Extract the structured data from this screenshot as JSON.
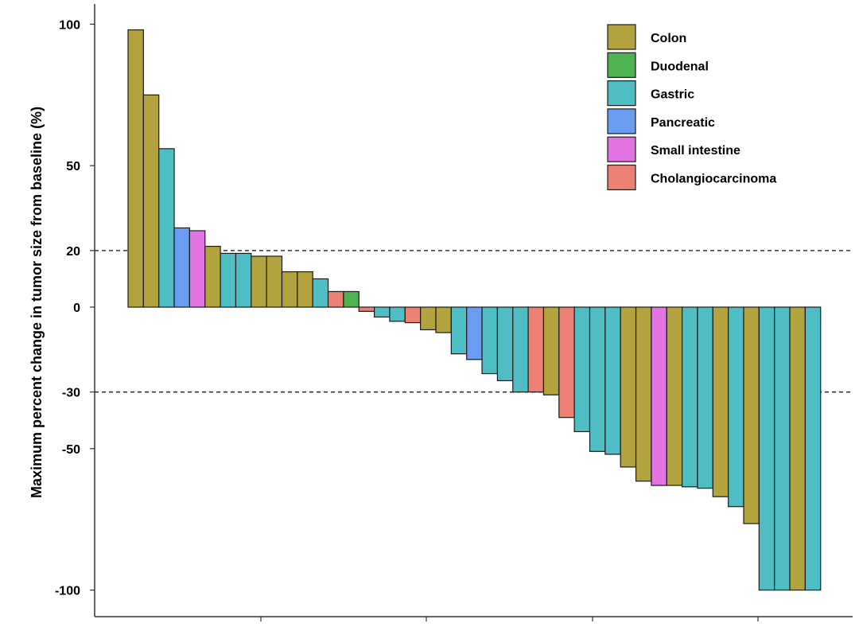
{
  "chart_data": {
    "type": "bar",
    "title": "",
    "xlabel": "",
    "ylabel": "Maximum percent change in tumor size from baseline (%)",
    "ylim": [
      -107,
      107
    ],
    "yticks": [
      100,
      50,
      20,
      0,
      -30,
      -50,
      -100
    ],
    "ytick_labels": [
      "100",
      "50",
      "20",
      "0",
      "-30",
      "-50",
      "-100"
    ],
    "reference_lines": [
      20,
      -30
    ],
    "legend_position": "top-right",
    "groups": [
      {
        "name": "Colon",
        "color": "#B3A33F"
      },
      {
        "name": "Duodenal",
        "color": "#4DB350"
      },
      {
        "name": "Gastric",
        "color": "#4FBEC4"
      },
      {
        "name": "Pancreatic",
        "color": "#6A9DF0"
      },
      {
        "name": "Small intestine",
        "color": "#E374E3"
      },
      {
        "name": "Cholangiocarcinoma",
        "color": "#EB8073"
      }
    ],
    "bars": [
      {
        "group": "Colon",
        "value": 98
      },
      {
        "group": "Colon",
        "value": 75
      },
      {
        "group": "Gastric",
        "value": 56
      },
      {
        "group": "Pancreatic",
        "value": 28
      },
      {
        "group": "Small intestine",
        "value": 27
      },
      {
        "group": "Colon",
        "value": 21.5
      },
      {
        "group": "Gastric",
        "value": 19
      },
      {
        "group": "Gastric",
        "value": 19
      },
      {
        "group": "Colon",
        "value": 18
      },
      {
        "group": "Colon",
        "value": 18
      },
      {
        "group": "Colon",
        "value": 12.5
      },
      {
        "group": "Colon",
        "value": 12.5
      },
      {
        "group": "Gastric",
        "value": 10
      },
      {
        "group": "Cholangiocarcinoma",
        "value": 5.5
      },
      {
        "group": "Duodenal",
        "value": 5.5
      },
      {
        "group": "Cholangiocarcinoma",
        "value": -1.5
      },
      {
        "group": "Gastric",
        "value": -3.5
      },
      {
        "group": "Gastric",
        "value": -5
      },
      {
        "group": "Cholangiocarcinoma",
        "value": -5.5
      },
      {
        "group": "Colon",
        "value": -8
      },
      {
        "group": "Colon",
        "value": -9
      },
      {
        "group": "Gastric",
        "value": -16.5
      },
      {
        "group": "Pancreatic",
        "value": -18.5
      },
      {
        "group": "Gastric",
        "value": -23.5
      },
      {
        "group": "Gastric",
        "value": -26
      },
      {
        "group": "Gastric",
        "value": -30
      },
      {
        "group": "Cholangiocarcinoma",
        "value": -30
      },
      {
        "group": "Colon",
        "value": -31
      },
      {
        "group": "Cholangiocarcinoma",
        "value": -39
      },
      {
        "group": "Gastric",
        "value": -44
      },
      {
        "group": "Gastric",
        "value": -51
      },
      {
        "group": "Gastric",
        "value": -52
      },
      {
        "group": "Colon",
        "value": -56.5
      },
      {
        "group": "Colon",
        "value": -61.5
      },
      {
        "group": "Small intestine",
        "value": -63
      },
      {
        "group": "Colon",
        "value": -63
      },
      {
        "group": "Gastric",
        "value": -63.5
      },
      {
        "group": "Gastric",
        "value": -64
      },
      {
        "group": "Colon",
        "value": -67
      },
      {
        "group": "Gastric",
        "value": -70.5
      },
      {
        "group": "Colon",
        "value": -76.5
      },
      {
        "group": "Gastric",
        "value": -100
      },
      {
        "group": "Gastric",
        "value": -100
      },
      {
        "group": "Colon",
        "value": -100
      },
      {
        "group": "Gastric",
        "value": -100
      }
    ]
  }
}
